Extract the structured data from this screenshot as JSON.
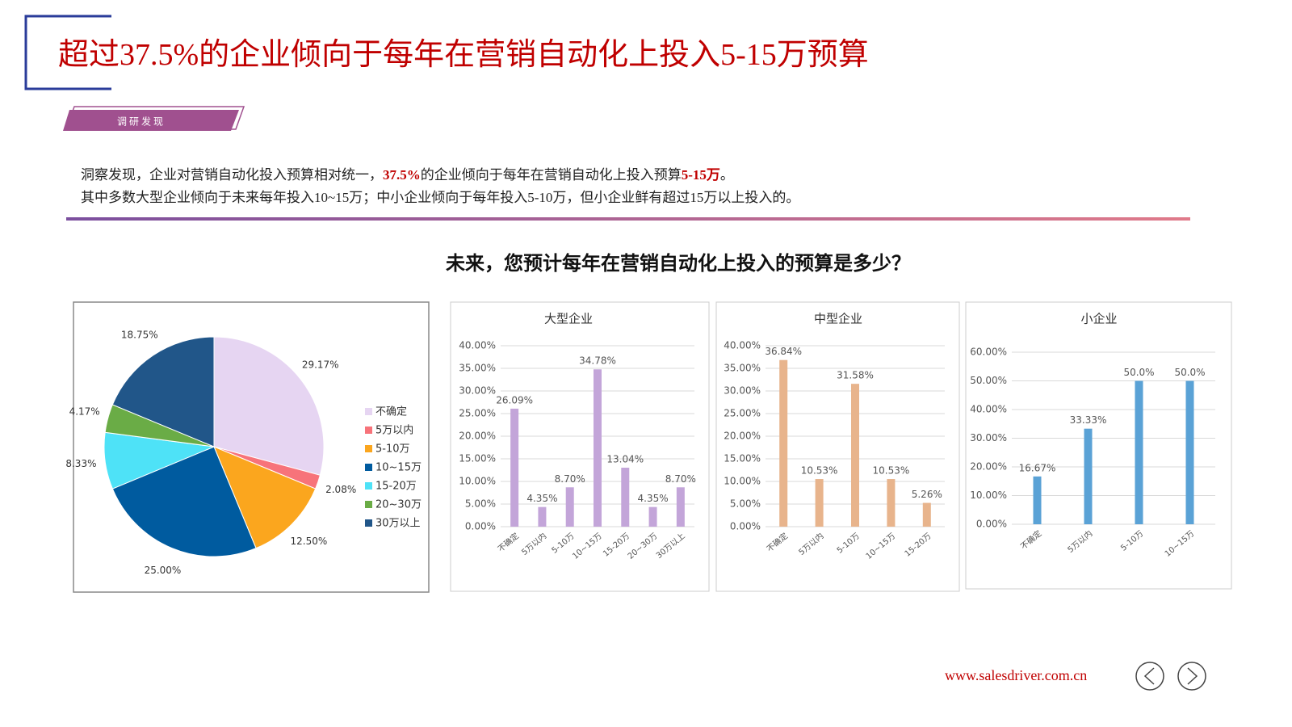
{
  "header": {
    "title": "超过37.5%的企业倾向于每年在营销自动化上投入5-15万预算",
    "tag": "调研发现"
  },
  "insight": {
    "line1": [
      "洞察发现，企业对营销自动化投入预算相对统一，",
      "37.5%",
      "的企业倾向于每年在营销自动化上投入预算",
      "5-15万",
      "。"
    ],
    "line2": "其中多数大型企业倾向于未来每年投入10~15万；中小企业倾向于每年投入5-10万，但小企业鲜有超过15万以上投入的。"
  },
  "question": "未来，您预计每年在营销自动化上投入的预算是多少？",
  "chart_data": [
    {
      "type": "pie",
      "categories": [
        "不确定",
        "5万以内",
        "5-10万",
        "10~15万",
        "15-20万",
        "20~30万",
        "30万以上"
      ],
      "values": [
        29.17,
        2.08,
        12.5,
        25.0,
        8.33,
        4.17,
        18.75
      ],
      "value_labels": [
        "29.17%",
        "2.08%",
        "12.50%",
        "25.00%",
        "8.33%",
        "4.17%",
        "18.75%"
      ],
      "colors": [
        "#e6d5f2",
        "#f7737a",
        "#fba61e",
        "#005b9f",
        "#4ee2f7",
        "#6aac46",
        "#215689"
      ],
      "legend": "right"
    },
    {
      "type": "bar",
      "title": "大型企业",
      "categories": [
        "不确定",
        "5万以内",
        "5-10万",
        "10~15万",
        "15-20万",
        "20~30万",
        "30万以上"
      ],
      "values": [
        26.09,
        4.35,
        8.7,
        34.78,
        13.04,
        4.35,
        8.7
      ],
      "value_labels": [
        "26.09%",
        "4.35%",
        "8.70%",
        "34.78%",
        "13.04%",
        "4.35%",
        "8.70%"
      ],
      "color": "#c3a5d9",
      "ylim": [
        0,
        40
      ],
      "yticks": [
        {
          "value": 0,
          "label": "0.00%"
        },
        {
          "value": 5,
          "label": "5.00%"
        },
        {
          "value": 10,
          "label": "10.00%"
        },
        {
          "value": 15,
          "label": "15.00%"
        },
        {
          "value": 20,
          "label": "20.00%"
        },
        {
          "value": 25,
          "label": "25.00%"
        },
        {
          "value": 30,
          "label": "30.00%"
        },
        {
          "value": 35,
          "label": "35.00%"
        },
        {
          "value": 40,
          "label": "40.00%"
        }
      ],
      "grid": true
    },
    {
      "type": "bar",
      "title": "中型企业",
      "categories": [
        "不确定",
        "5万以内",
        "5-10万",
        "10~15万",
        "15-20万"
      ],
      "values": [
        36.84,
        10.53,
        31.58,
        10.53,
        5.26
      ],
      "value_labels": [
        "36.84%",
        "10.53%",
        "31.58%",
        "10.53%",
        "5.26%"
      ],
      "color": "#e8b48c",
      "ylim": [
        0,
        40
      ],
      "yticks": [
        {
          "value": 0,
          "label": "0.00%"
        },
        {
          "value": 5,
          "label": "5.00%"
        },
        {
          "value": 10,
          "label": "10.00%"
        },
        {
          "value": 15,
          "label": "15.00%"
        },
        {
          "value": 20,
          "label": "20.00%"
        },
        {
          "value": 25,
          "label": "25.00%"
        },
        {
          "value": 30,
          "label": "30.00%"
        },
        {
          "value": 35,
          "label": "35.00%"
        },
        {
          "value": 40,
          "label": "40.00%"
        }
      ],
      "grid": true
    },
    {
      "type": "bar",
      "title": "小企业",
      "categories": [
        "不确定",
        "5万以内",
        "5-10万",
        "10~15万"
      ],
      "values": [
        16.67,
        33.33,
        50.0,
        50.0
      ],
      "value_labels": [
        "16.67%",
        "33.33%",
        "50.0%",
        "50.0%"
      ],
      "color": "#5aa2d6",
      "ylim": [
        0,
        60
      ],
      "yticks": [
        {
          "value": 0,
          "label": "0.00%"
        },
        {
          "value": 10,
          "label": "10.00%"
        },
        {
          "value": 20,
          "label": "20.00%"
        },
        {
          "value": 30,
          "label": "30.00%"
        },
        {
          "value": 40,
          "label": "40.00%"
        },
        {
          "value": 50,
          "label": "50.00%"
        },
        {
          "value": 60,
          "label": "60.00%"
        }
      ],
      "grid": true
    }
  ],
  "footer": {
    "url": "www.salesdriver.com.cn"
  }
}
